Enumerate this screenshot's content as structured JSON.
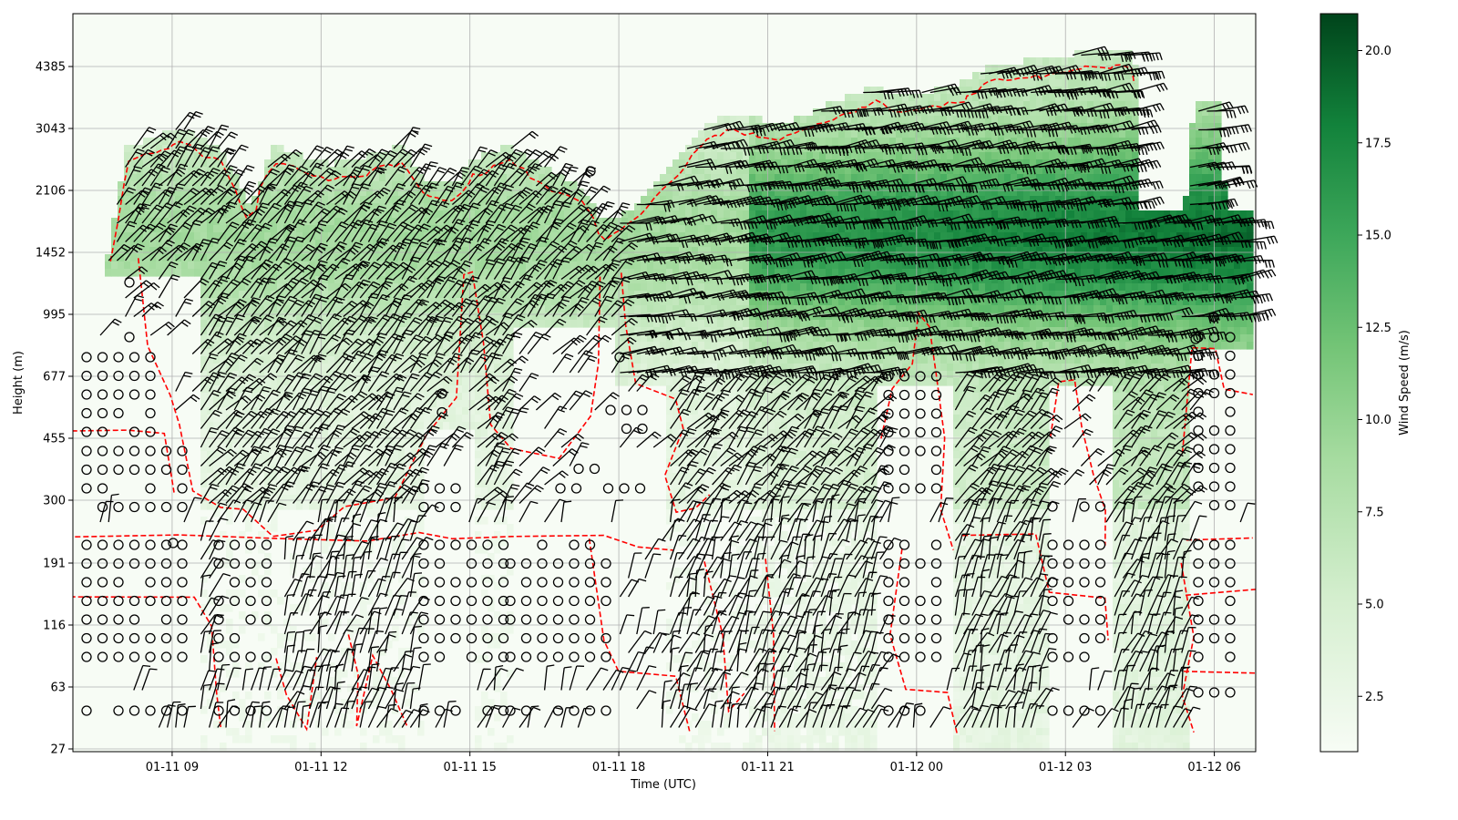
{
  "chart_data": {
    "type": "heatmap",
    "overlays": [
      "wind-barbs",
      "calm-circles",
      "contour"
    ],
    "xlabel": "Time (UTC)",
    "ylabel": "Height (m)",
    "x_range": [
      "01-11 07:00",
      "01-12 06:50"
    ],
    "x_ticks": [
      {
        "value": "01-11 09:00",
        "label": "01-11 09"
      },
      {
        "value": "01-11 12:00",
        "label": "01-11 12"
      },
      {
        "value": "01-11 15:00",
        "label": "01-11 15"
      },
      {
        "value": "01-11 18:00",
        "label": "01-11 18"
      },
      {
        "value": "01-11 21:00",
        "label": "01-11 21"
      },
      {
        "value": "01-12 00:00",
        "label": "01-12 00"
      },
      {
        "value": "01-12 03:00",
        "label": "01-12 03"
      },
      {
        "value": "01-12 06:00",
        "label": "01-12 06"
      }
    ],
    "y_ticks": [
      "27",
      "63",
      "116",
      "191",
      "300",
      "455",
      "677",
      "995",
      "1452",
      "2106",
      "3043",
      "4385"
    ],
    "grid": true,
    "colorbar": {
      "label": "Wind Speed (m/s)",
      "range": [
        1,
        21
      ],
      "ticks": [
        "2.5",
        "5.0",
        "7.5",
        "10.0",
        "12.5",
        "15.0",
        "17.5",
        "20.0"
      ],
      "colormap": "Greens"
    },
    "contour_color": "#ff0000",
    "barb_color": "#000000"
  }
}
